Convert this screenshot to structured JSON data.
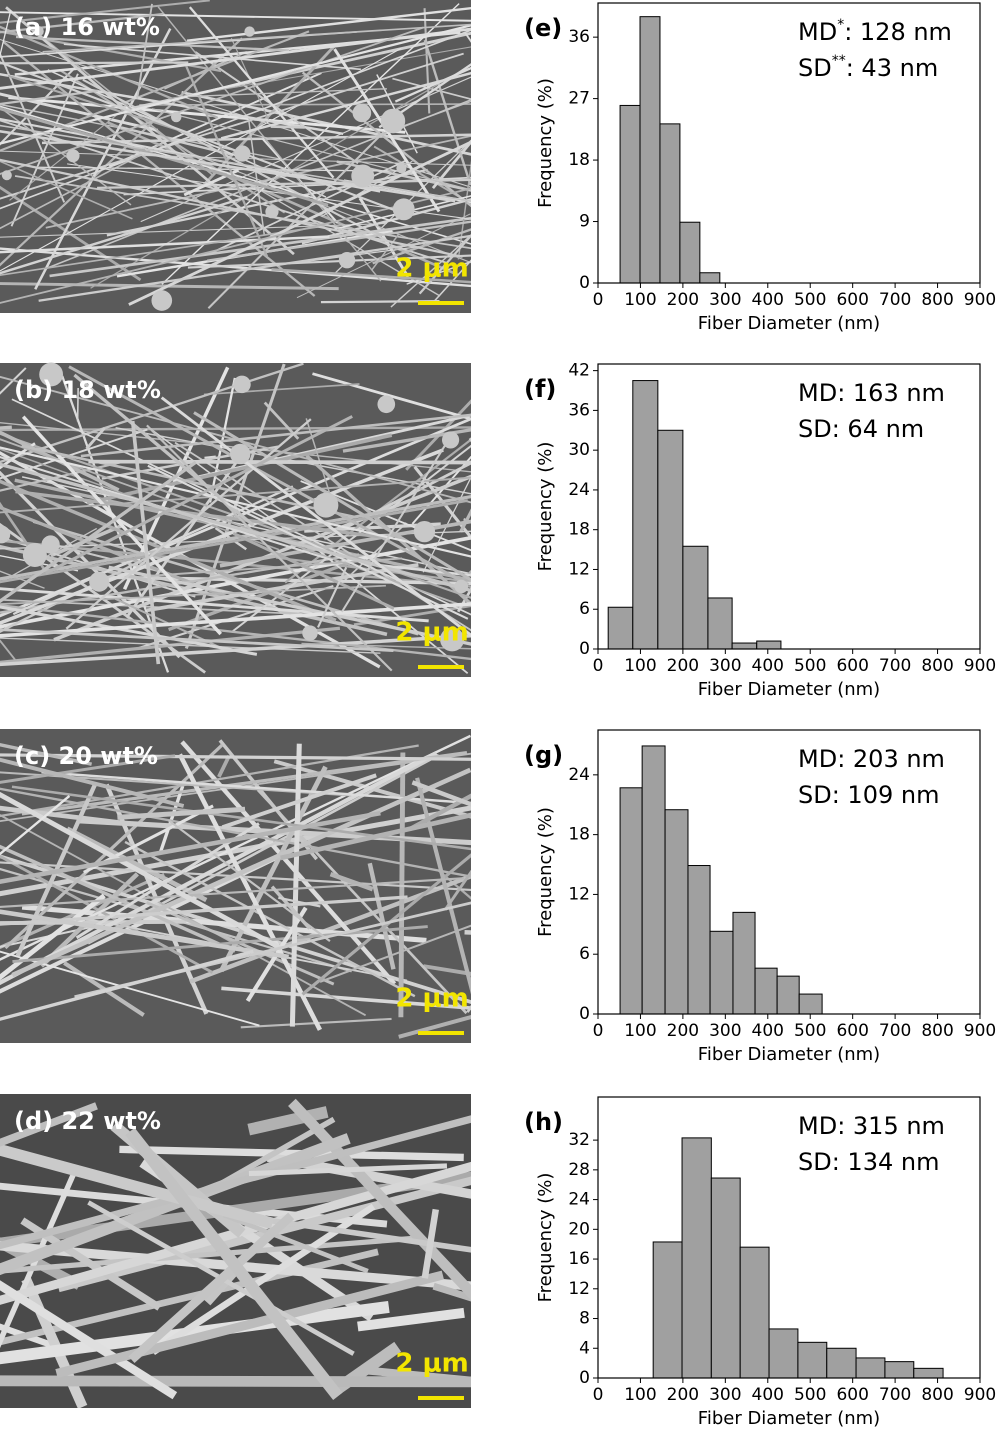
{
  "panels": [
    {
      "label": "(a) 16 wt%",
      "scale_bar": "2 μm"
    },
    {
      "label": "(b) 18 wt%",
      "scale_bar": "2 μm"
    },
    {
      "label": "(c) 20 wt%",
      "scale_bar": "2 μm"
    },
    {
      "label": "(d) 22 wt%",
      "scale_bar": "2 μm"
    }
  ],
  "chart_data": [
    {
      "type": "histogram",
      "panel_label": "(e)",
      "annotations": [
        [
          "MD",
          "*",
          ": 128 nm"
        ],
        [
          "SD",
          "**",
          ": 43 nm"
        ]
      ],
      "x_label": "Fiber Diameter (nm)",
      "y_label": "Frequency (%)",
      "color": "#a0a0a0",
      "bins": [
        52,
        99,
        146,
        193,
        240,
        287
      ],
      "values": [
        26,
        39,
        23.3,
        8.9,
        1.5
      ],
      "xlim": [
        0,
        900
      ],
      "xticks": [
        0,
        100,
        200,
        300,
        400,
        500,
        600,
        700,
        800,
        900
      ],
      "ylim": [
        0,
        41
      ],
      "yticks": [
        0,
        9,
        18,
        27,
        36
      ]
    },
    {
      "type": "histogram",
      "panel_label": "(f)",
      "annotations": [
        [
          "MD: 163 nm"
        ],
        [
          "SD: 64 nm"
        ]
      ],
      "x_label": "Fiber Diameter (nm)",
      "y_label": "Frequency (%)",
      "color": "#a0a0a0",
      "bins": [
        24,
        82,
        141,
        200,
        259,
        316,
        374,
        431
      ],
      "values": [
        6.3,
        40.5,
        33,
        15.5,
        7.7,
        0.9,
        1.2
      ],
      "xlim": [
        0,
        900
      ],
      "xticks": [
        0,
        100,
        200,
        300,
        400,
        500,
        600,
        700,
        800,
        900
      ],
      "ylim": [
        0,
        43
      ],
      "yticks": [
        0,
        6,
        12,
        18,
        24,
        30,
        36,
        42
      ]
    },
    {
      "type": "histogram",
      "panel_label": "(g)",
      "annotations": [
        [
          "MD: 203 nm"
        ],
        [
          "SD: 109 nm"
        ]
      ],
      "x_label": "Fiber Diameter (nm)",
      "y_label": "Frequency (%)",
      "color": "#a0a0a0",
      "bins": [
        52,
        104,
        158,
        212,
        264,
        318,
        370,
        422,
        474,
        528
      ],
      "values": [
        22.7,
        26.9,
        20.5,
        14.9,
        8.3,
        10.2,
        4.6,
        3.8,
        2.0
      ],
      "xlim": [
        0,
        900
      ],
      "xticks": [
        0,
        100,
        200,
        300,
        400,
        500,
        600,
        700,
        800,
        900
      ],
      "ylim": [
        0,
        28.5
      ],
      "yticks": [
        0,
        6,
        12,
        18,
        24
      ]
    },
    {
      "type": "histogram",
      "panel_label": "(h)",
      "annotations": [
        [
          "MD: 315 nm"
        ],
        [
          "SD: 134 nm"
        ]
      ],
      "x_label": "Fiber Diameter (nm)",
      "y_label": "Frequency (%)",
      "color": "#a0a0a0",
      "bins": [
        130,
        198,
        267,
        335,
        403,
        471,
        539,
        608,
        676,
        744,
        813
      ],
      "values": [
        18.3,
        32.3,
        26.9,
        17.6,
        6.6,
        4.8,
        4.0,
        2.7,
        2.2,
        1.3
      ],
      "xlim": [
        0,
        900
      ],
      "xticks": [
        0,
        100,
        200,
        300,
        400,
        500,
        600,
        700,
        800,
        900
      ],
      "ylim": [
        0,
        37.8
      ],
      "yticks": [
        0,
        4,
        8,
        12,
        16,
        20,
        24,
        28,
        32
      ]
    }
  ]
}
